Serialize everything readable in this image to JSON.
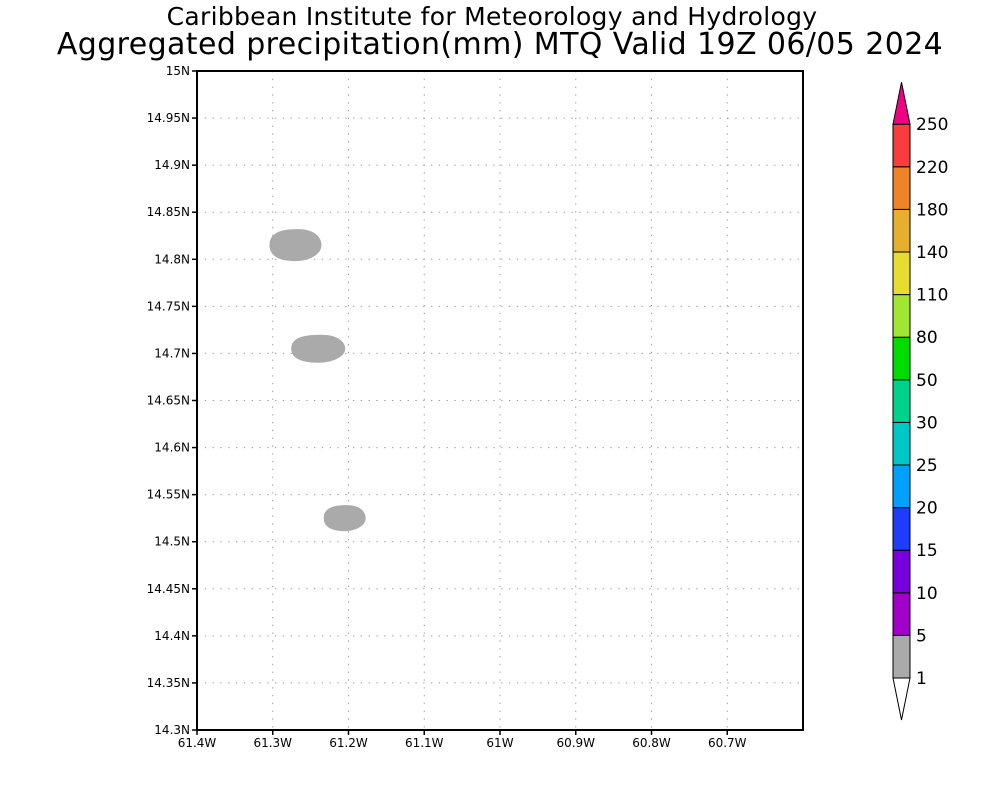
{
  "header": {
    "institute": "Caribbean Institute for Meteorology and Hydrology",
    "product": "Aggregated precipitation(mm) MTQ Valid 19Z 06/05 2024"
  },
  "map": {
    "lat_ticks": [
      "15N",
      "14.95N",
      "14.9N",
      "14.85N",
      "14.8N",
      "14.75N",
      "14.7N",
      "14.65N",
      "14.6N",
      "14.55N",
      "14.5N",
      "14.45N",
      "14.4N",
      "14.35N",
      "14.3N"
    ],
    "lon_ticks": [
      "61.4W",
      "61.3W",
      "61.2W",
      "61.1W",
      "61W",
      "60.9W",
      "60.8W",
      "60.7W"
    ],
    "lat_range": [
      14.3,
      15.0
    ],
    "lon_range": [
      -61.4,
      -60.6
    ],
    "grid": "dotted",
    "precip_areas": [
      {
        "lon": -61.27,
        "lat": 14.815,
        "category": "1-5 mm"
      },
      {
        "lon": -61.24,
        "lat": 14.705,
        "category": "1-5 mm"
      },
      {
        "lon": -61.205,
        "lat": 14.525,
        "category": "1-5 mm"
      }
    ]
  },
  "legend": {
    "levels": [
      {
        "label": "1",
        "color": "#aaaaaa"
      },
      {
        "label": "5",
        "color": "#a000c8"
      },
      {
        "label": "10",
        "color": "#7800dc"
      },
      {
        "label": "15",
        "color": "#1e3cff"
      },
      {
        "label": "20",
        "color": "#00a0ff"
      },
      {
        "label": "25",
        "color": "#00c8c8"
      },
      {
        "label": "30",
        "color": "#00d28c"
      },
      {
        "label": "50",
        "color": "#00dc00"
      },
      {
        "label": "80",
        "color": "#a0e632"
      },
      {
        "label": "110",
        "color": "#e6dc32"
      },
      {
        "label": "140",
        "color": "#e6af2d"
      },
      {
        "label": "180",
        "color": "#f08228"
      },
      {
        "label": "220",
        "color": "#fa3c3c"
      },
      {
        "label": "250",
        "color": "#f00082"
      }
    ],
    "below_color": "#ffffff"
  }
}
